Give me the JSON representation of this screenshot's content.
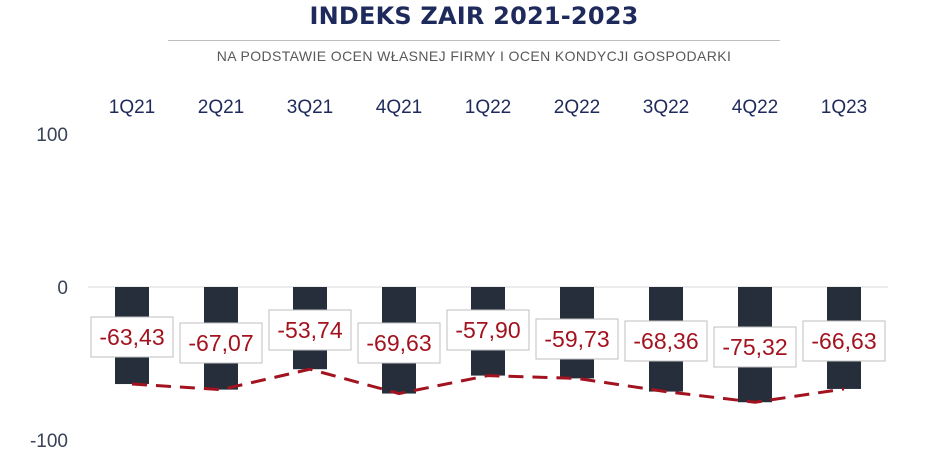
{
  "chart_data": {
    "type": "bar",
    "title": "INDEKS ZAIR 2021-2023",
    "subtitle": "NA PODSTAWIE OCEN WŁASNEJ FIRMY I OCEN KONDYCJI GOSPODARKI",
    "categories": [
      "1Q21",
      "2Q21",
      "3Q21",
      "4Q21",
      "1Q22",
      "2Q22",
      "3Q22",
      "4Q22",
      "1Q23"
    ],
    "values": [
      -63.43,
      -67.07,
      -53.74,
      -69.63,
      -57.9,
      -59.73,
      -68.36,
      -75.32,
      -66.63
    ],
    "value_labels": [
      "-63,43",
      "-67,07",
      "-53,74",
      "-69,63",
      "-57,90",
      "-59,73",
      "-68,36",
      "-75,32",
      "-66,63"
    ],
    "yticks": [
      "100",
      "0",
      "-100"
    ],
    "ytick_values": [
      100,
      0,
      -100
    ],
    "ylim": [
      -100,
      100
    ],
    "trend_line": {
      "style": "dashed",
      "color": "#a3131f"
    },
    "bar_color": "#262e3b",
    "grid": false,
    "legend": "none"
  }
}
